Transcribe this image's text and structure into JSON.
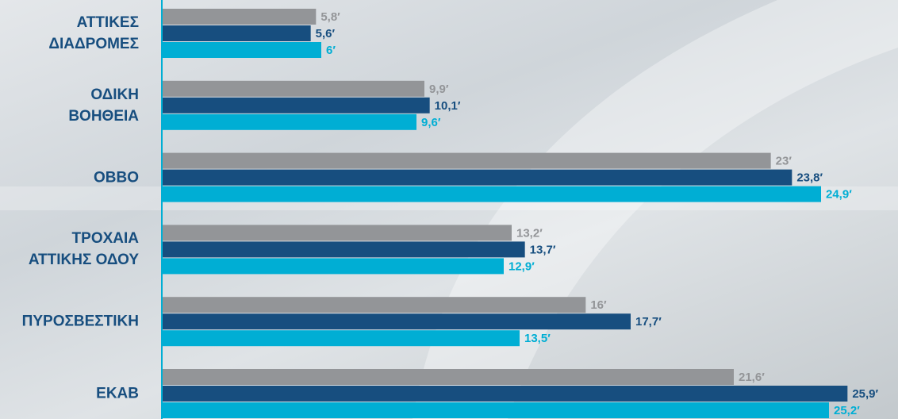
{
  "chart_data": {
    "type": "hbar",
    "categories": [
      "ΑΤΤΙΚΕΣ\nΔΙΑΔΡΟΜΕΣ",
      "ΟΔΙΚΗ\nΒΟΗΘΕΙΑ",
      "ΟΒΒΟ",
      "ΤΡΟΧΑΙΑ\nΑΤΤΙΚΗΣ ΟΔΟΥ",
      "ΠΥΡΟΣΒΕΣΤΙΚΗ",
      "ΕΚΑΒ"
    ],
    "series": [
      {
        "color": "#939598",
        "values": [
          5.8,
          9.9,
          23,
          13.2,
          16,
          21.6
        ],
        "value_labels": [
          "5,8′",
          "9,9′",
          "23′",
          "13,2′",
          "16′",
          "21,6′"
        ]
      },
      {
        "color": "#174e7f",
        "values": [
          5.6,
          10.1,
          23.8,
          13.7,
          17.7,
          25.9
        ],
        "value_labels": [
          "5,6′",
          "10,1′",
          "23,8′",
          "13,7′",
          "17,7′",
          "25,9′"
        ]
      },
      {
        "color": "#00aed4",
        "values": [
          6,
          9.6,
          24.9,
          12.9,
          13.5,
          25.2
        ],
        "value_labels": [
          "6′",
          "9,6′",
          "24,9′",
          "12,9′",
          "13,5′",
          "25,2′"
        ]
      }
    ],
    "xlim": [
      0,
      27
    ]
  }
}
